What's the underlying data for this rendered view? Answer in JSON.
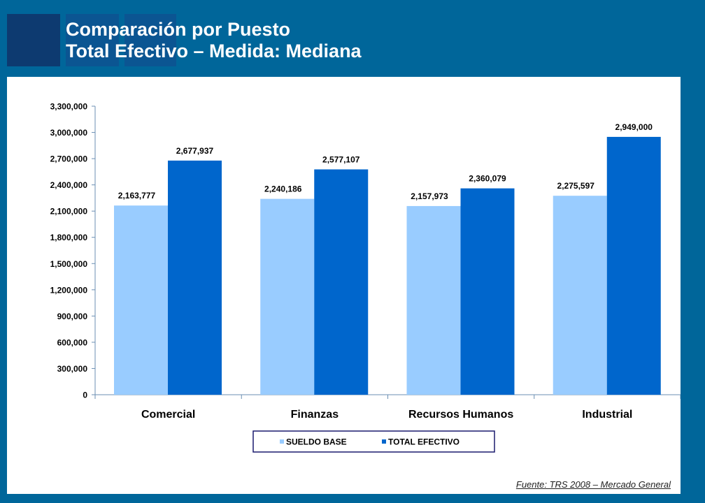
{
  "title_line1": "Comparación por Puesto",
  "title_line2": "Total Efectivo – Medida: Mediana",
  "source": "Fuente: TRS 2008  – Mercado General",
  "colors": {
    "background": "#00669a",
    "series1": "#99ccff",
    "series2": "#0066cc"
  },
  "chart_data": {
    "type": "bar",
    "categories": [
      "Comercial",
      "Finanzas",
      "Recursos Humanos",
      "Industrial"
    ],
    "series": [
      {
        "name": "SUELDO BASE",
        "values": [
          2163777,
          2240186,
          2157973,
          2275597
        ],
        "labels": [
          "2,163,777",
          "2,240,186",
          "2,157,973",
          "2,275,597"
        ]
      },
      {
        "name": "TOTAL EFECTIVO",
        "values": [
          2677937,
          2577107,
          2360079,
          2949000
        ],
        "labels": [
          "2,677,937",
          "2,577,107",
          "2,360,079",
          "2,949,000"
        ]
      }
    ],
    "ylim": [
      0,
      3300000
    ],
    "yticks": [
      0,
      300000,
      600000,
      900000,
      1200000,
      1500000,
      1800000,
      2100000,
      2400000,
      2700000,
      3000000,
      3300000
    ],
    "ytick_labels": [
      "0",
      "300,000",
      "600,000",
      "900,000",
      "1,200,000",
      "1,500,000",
      "1,800,000",
      "2,100,000",
      "2,400,000",
      "2,700,000",
      "3,000,000",
      "3,300,000"
    ],
    "grid": false,
    "legend_position": "bottom"
  }
}
